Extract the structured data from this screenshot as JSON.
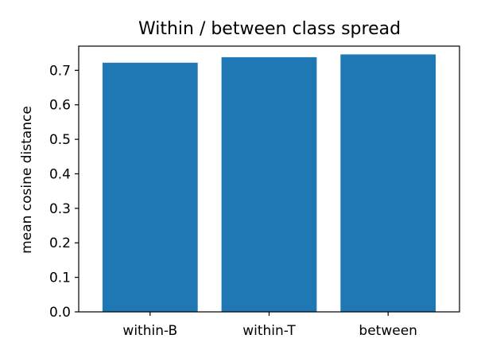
{
  "chart_data": {
    "type": "bar",
    "title": "Within / between class spread",
    "xlabel": "",
    "ylabel": "mean cosine distance",
    "categories": [
      "within-B",
      "within-T",
      "between"
    ],
    "values": [
      0.722,
      0.738,
      0.746
    ],
    "ylim": [
      0,
      0.77
    ],
    "yticks": [
      0.0,
      0.1,
      0.2,
      0.3,
      0.4,
      0.5,
      0.6,
      0.7
    ],
    "ytick_labels": [
      "0.0",
      "0.1",
      "0.2",
      "0.3",
      "0.4",
      "0.5",
      "0.6",
      "0.7"
    ],
    "bar_color": "#1f77b4",
    "grid": false,
    "legend": "none"
  }
}
